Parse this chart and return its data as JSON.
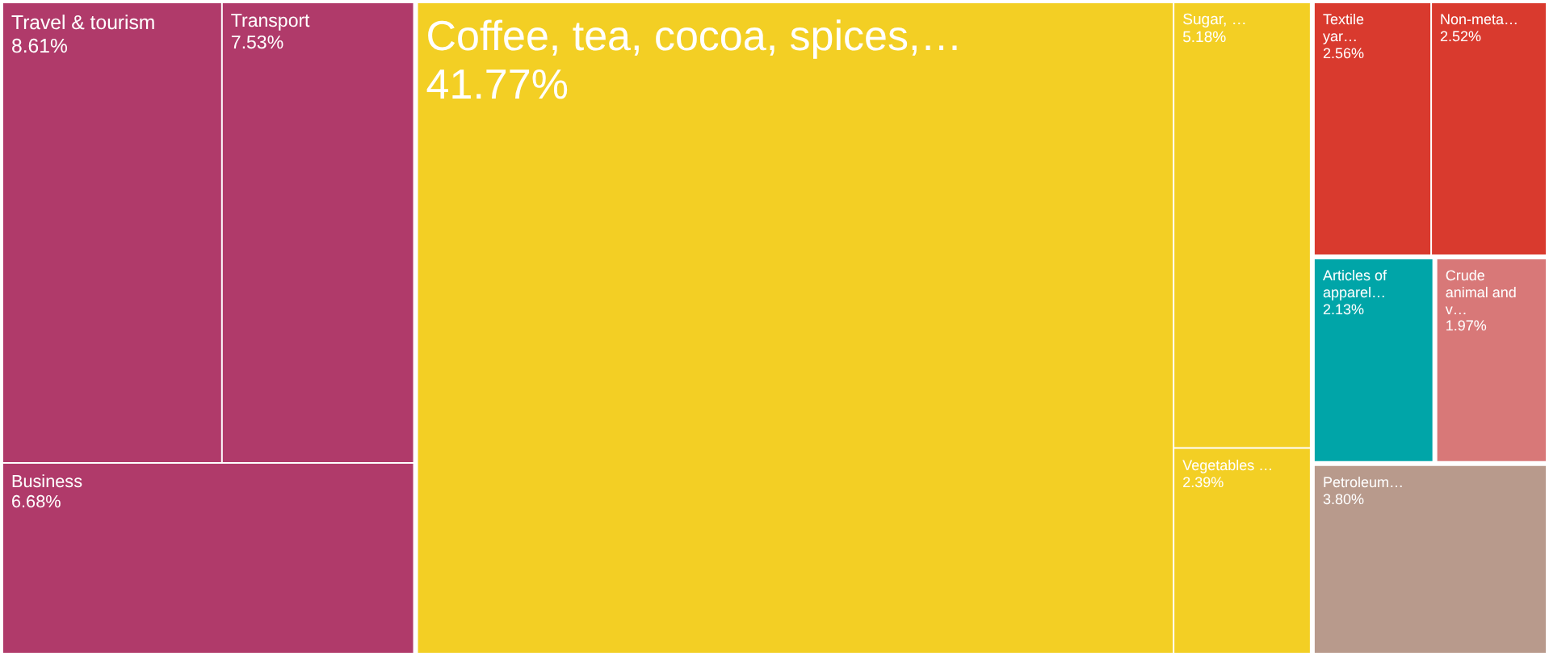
{
  "chart_data": {
    "type": "other",
    "categories": [
      "Travel & tourism",
      "Transport",
      "Business",
      "Coffee, tea, cocoa, spices,…",
      "Sugar, …",
      "Vegetables …",
      "Textile yar…",
      "Non-meta…",
      "Articles of apparel…",
      "Crude animal and v…",
      "Petroleum…"
    ],
    "values": [
      8.61,
      7.53,
      6.68,
      41.77,
      5.18,
      2.39,
      2.56,
      2.52,
      2.13,
      1.97,
      3.8
    ],
    "value_labels": [
      "8.61%",
      "7.53%",
      "6.68%",
      "41.77%",
      "5.18%",
      "2.39%",
      "2.56%",
      "2.52%",
      "2.13%",
      "1.97%",
      "3.80%"
    ],
    "colors": [
      "#b03a6a",
      "#b03a6a",
      "#b03a6a",
      "#f3cf24",
      "#f3cf24",
      "#f3cf24",
      "#d93a2e",
      "#d93a2e",
      "#00a5a8",
      "#d87878",
      "#b89a8c"
    ]
  }
}
